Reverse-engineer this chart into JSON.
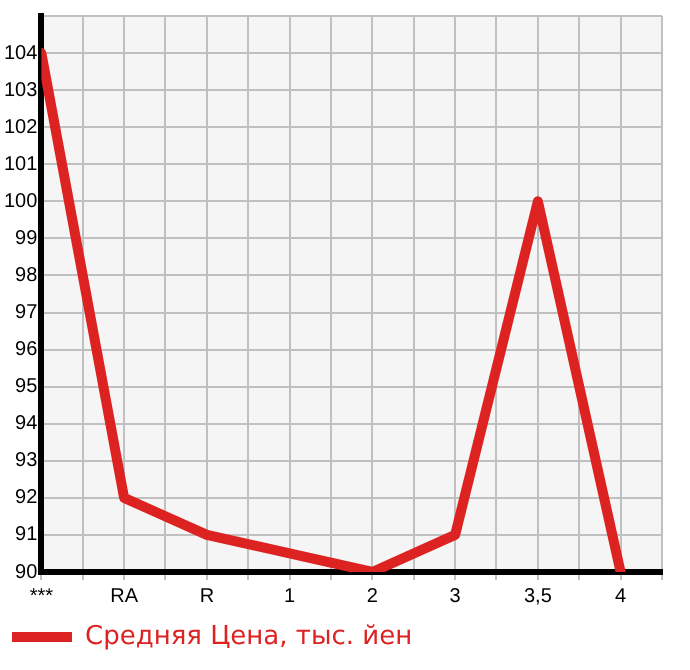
{
  "chart_data": {
    "type": "line",
    "categories": [
      "***",
      "RA",
      "R",
      "1",
      "2",
      "3",
      "3,5",
      "4"
    ],
    "series": [
      {
        "name": "Средняя Цена, тыс. йен",
        "color": "#dd2222",
        "values": [
          104,
          92,
          91,
          90.5,
          90,
          91,
          100,
          90
        ]
      }
    ],
    "ylim": [
      90,
      105
    ],
    "yticks": [
      90,
      91,
      92,
      93,
      94,
      95,
      96,
      97,
      98,
      99,
      100,
      101,
      102,
      103,
      104,
      {
        "value": 105,
        "label": null
      }
    ],
    "grid": true,
    "legend": "bottom left",
    "marker": "none",
    "line_style": "solid"
  }
}
